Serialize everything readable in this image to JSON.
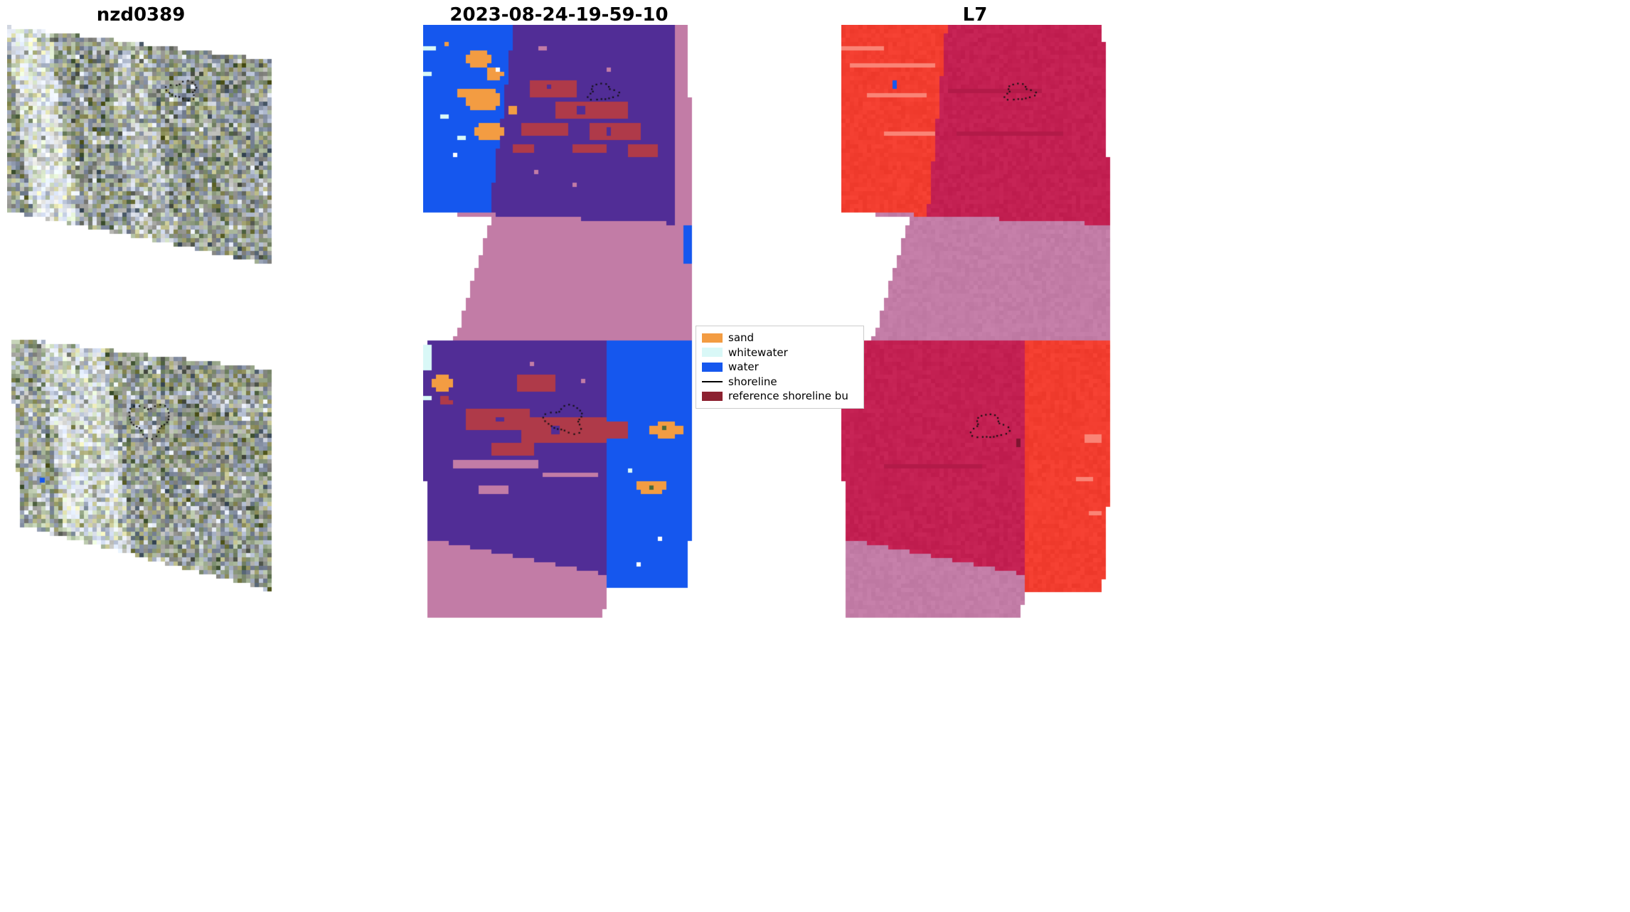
{
  "figure": {
    "kind": "satellite-shoreline-classification-figure",
    "background": "#ffffff"
  },
  "titles": {
    "left": "nzd0389",
    "middle": "2023-08-24-19-59-10",
    "right": "L7"
  },
  "legend": {
    "border_color": "#cccccc",
    "items": [
      {
        "label": "sand",
        "swatch": "patch",
        "color": "#F39C42"
      },
      {
        "label": "whitewater",
        "swatch": "patch",
        "color": "#D9F8F7"
      },
      {
        "label": "water",
        "swatch": "patch",
        "color": "#1557EE"
      },
      {
        "label": "shoreline",
        "swatch": "line",
        "color": "#000000"
      },
      {
        "label": "reference shoreline bu",
        "swatch": "patch",
        "color": "#8C2130"
      }
    ]
  },
  "colors": {
    "classes": {
      "sand": "#F39C42",
      "whitewater": "#D9F8F7",
      "water": "#1557EE",
      "purple": "#512D96",
      "mauve": "#C27CA6",
      "brick": "#AF3A49",
      "dkgreen": "#4A6B3A",
      "white": "#FFFFFF"
    },
    "l7": {
      "bright": "#F23D2F",
      "crimson": "#C32052",
      "light": "#FA8476",
      "darkstreak": "#B21A48",
      "maroondot": "#7E1430"
    },
    "noise": {
      "base": "#8F9488",
      "highlight": "#DCE3EA"
    },
    "shoreline": "#000000"
  },
  "panels": {
    "left_top": {
      "name": "satellite-rgb-chip-top",
      "annotation": "dotted reference shoreline"
    },
    "left_bottom": {
      "name": "satellite-rgb-chip-bottom",
      "annotation": "dotted reference shoreline"
    },
    "middle": {
      "name": "classified-scene",
      "annotation": "class map with dotted shorelines"
    },
    "right": {
      "name": "landsat7-scene",
      "annotation": "L7 scene with dotted shorelines"
    }
  }
}
